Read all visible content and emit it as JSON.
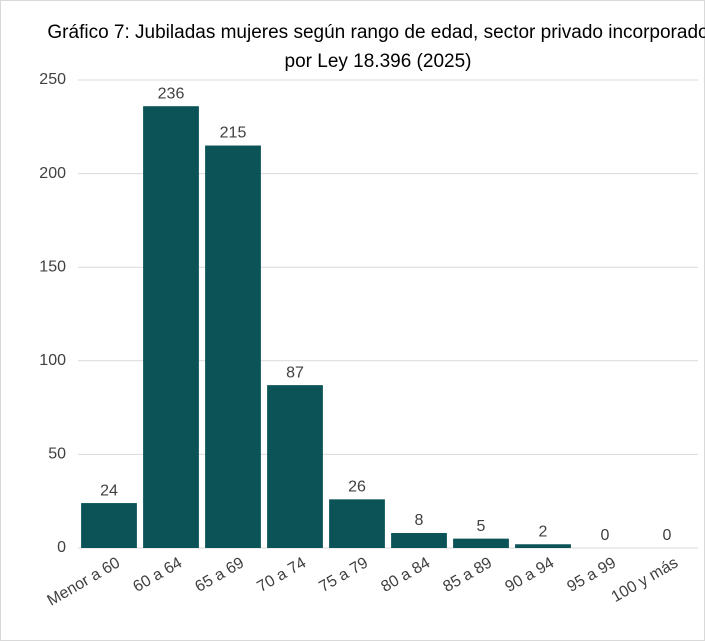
{
  "chart_data": {
    "type": "bar",
    "title": "Gráfico 7: Jubiladas mujeres según rango de edad, sector privado incorporado por Ley 18.396 (2025)",
    "categories": [
      "Menor a 60",
      "60 a 64",
      "65 a 69",
      "70 a 74",
      "75 a 79",
      "80 a 84",
      "85 a 89",
      "90 a 94",
      "95 a 99",
      "100 y más"
    ],
    "values": [
      24,
      236,
      215,
      87,
      26,
      8,
      5,
      2,
      0,
      0
    ],
    "color": "#0b5357",
    "ylim": [
      0,
      250
    ],
    "yticks": [
      0,
      50,
      100,
      150,
      200,
      250
    ],
    "grid": true
  }
}
